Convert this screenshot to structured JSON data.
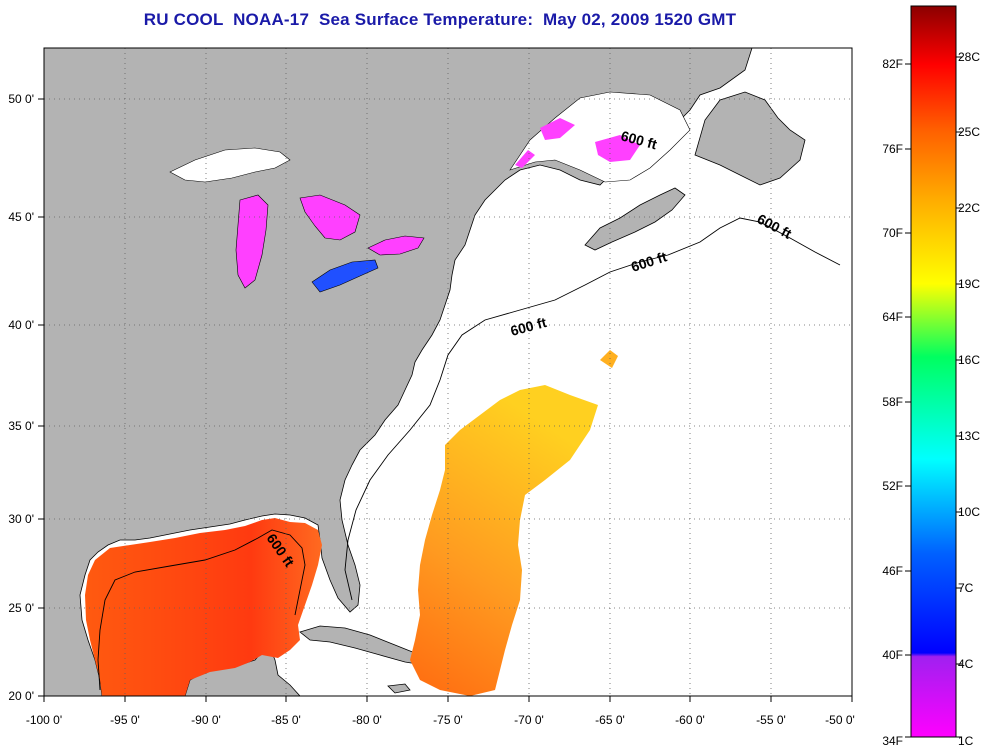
{
  "title": "RU COOL  NOAA-17  Sea Surface Temperature:  May 02, 2009 1520 GMT",
  "map": {
    "lon_range": [
      -100,
      -50
    ],
    "lat_range": [
      20,
      52
    ],
    "x_ticks": [
      "-100 0'",
      "-95 0'",
      "-90 0'",
      "-85 0'",
      "-80 0'",
      "-75 0'",
      "-70 0'",
      "-65 0'",
      "-60 0'",
      "-55 0'",
      "-50 0'"
    ],
    "y_ticks": [
      "20 0'",
      "25 0'",
      "30 0'",
      "35 0'",
      "40 0'",
      "45 0'",
      "50 0'"
    ],
    "grid": "dotted",
    "contour_labels": [
      "600 ft",
      "600 ft",
      "600 ft",
      "600 ft",
      "600 ft"
    ],
    "colors": {
      "land": "#b3b3b3",
      "nodata": "#ffffff"
    }
  },
  "colorbar": {
    "fahrenheit": [
      "82F",
      "76F",
      "70F",
      "64F",
      "58F",
      "52F",
      "46F",
      "40F",
      "34F"
    ],
    "celsius": [
      "28C",
      "25C",
      "22C",
      "19C",
      "16C",
      "13C",
      "10C",
      "7C",
      "4C",
      "1C"
    ],
    "colors": [
      "#8b0000",
      "#ff0000",
      "#ff7f00",
      "#ffff00",
      "#00ff7f",
      "#00ffff",
      "#0080ff",
      "#0000ff",
      "#8b00ff",
      "#ff00ff"
    ]
  }
}
